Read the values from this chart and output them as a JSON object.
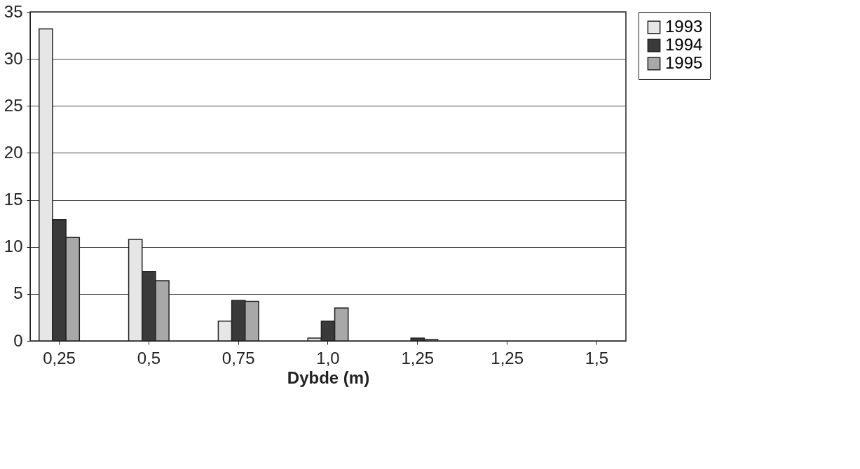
{
  "chart_data": {
    "type": "bar",
    "xlabel": "Dybde (m)",
    "categories": [
      "0,25",
      "0,5",
      "0,75",
      "1,0",
      "1,25",
      "1,25",
      "1,5"
    ],
    "series": [
      {
        "name": "1993",
        "color": "#e6e6e6",
        "values": [
          33.2,
          10.8,
          2.1,
          0.3,
          0,
          0,
          0
        ]
      },
      {
        "name": "1994",
        "color": "#3a3a3a",
        "values": [
          12.9,
          7.4,
          4.3,
          2.1,
          0.3,
          0,
          0
        ]
      },
      {
        "name": "1995",
        "color": "#a8a8a8",
        "values": [
          11.0,
          6.4,
          4.2,
          3.5,
          0.15,
          0,
          0
        ]
      }
    ],
    "ylim": [
      0,
      35
    ],
    "yticks": [
      0,
      5,
      10,
      15,
      20,
      25,
      30,
      35
    ],
    "grid": "y",
    "legend": "top right"
  }
}
